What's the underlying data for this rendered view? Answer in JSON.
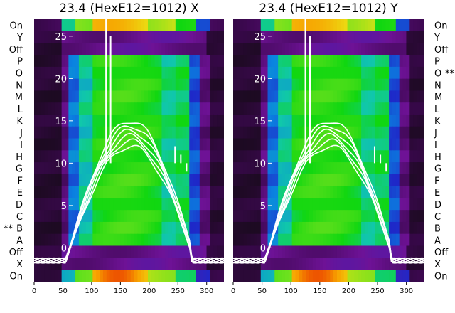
{
  "chart_data": [
    {
      "type": "heatmap",
      "title": "23.4 (HexE12=1012) X",
      "xticks": [
        "0",
        "50",
        "100",
        "150",
        "200",
        "250",
        "300"
      ],
      "xlim": [
        0,
        330
      ],
      "yticks": [
        "0",
        "5",
        "10",
        "15",
        "20",
        "25"
      ],
      "ylim": [
        -4,
        27
      ],
      "rows": [
        "On",
        "Y",
        "Off",
        "P",
        "O",
        "N",
        "M",
        "L",
        "K",
        "J",
        "I",
        "H",
        "G",
        "F",
        "E",
        "D",
        "C",
        "B",
        "A",
        "Off",
        "X",
        "On"
      ],
      "row_markers": [
        {
          "row": "B",
          "marker": "**"
        }
      ],
      "colormap": [
        "#1a0a1e",
        "#4b0a6e",
        "#7a10a8",
        "#1a2cc8",
        "#0a88e0",
        "#10c8a0",
        "#10d810",
        "#6ce020",
        "#e8e010",
        "#f8a000",
        "#e83000"
      ],
      "trace_color": "#ffffff"
    },
    {
      "type": "heatmap",
      "title": "23.4 (HexE12=1012) Y",
      "xticks": [
        "0",
        "50",
        "100",
        "150",
        "200",
        "250",
        "300"
      ],
      "xlim": [
        0,
        330
      ],
      "yticks": [
        "0",
        "5",
        "10",
        "15",
        "20",
        "25"
      ],
      "ylim": [
        -4,
        27
      ],
      "rows": [
        "On",
        "Y",
        "Off",
        "P",
        "O",
        "N",
        "M",
        "L",
        "K",
        "J",
        "I",
        "H",
        "G",
        "F",
        "E",
        "D",
        "C",
        "B",
        "A",
        "Off",
        "X",
        "On"
      ],
      "row_markers": [
        {
          "row": "O",
          "marker": "**"
        }
      ],
      "colormap": [
        "#1a0a1e",
        "#4b0a6e",
        "#7a10a8",
        "#1a2cc8",
        "#0a88e0",
        "#10c8a0",
        "#10d810",
        "#6ce020",
        "#e8e010",
        "#f8a000",
        "#e83000"
      ],
      "trace_color": "#ffffff"
    }
  ]
}
